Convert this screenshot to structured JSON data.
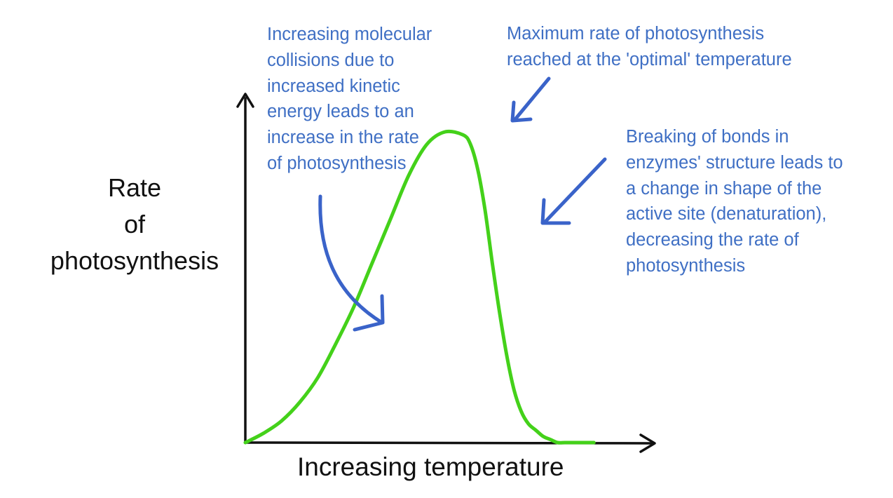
{
  "chart_data": {
    "type": "line",
    "title": "",
    "xlabel": "Increasing temperature",
    "ylabel": [
      "Rate",
      "of",
      "photosynthesis"
    ],
    "xlim": [
      0,
      100
    ],
    "ylim": [
      0,
      100
    ],
    "grid": false,
    "legend": "none",
    "series": [
      {
        "name": "Rate of photosynthesis",
        "color": "#44d11a",
        "x": [
          0,
          5,
          10,
          15,
          20,
          25,
          30,
          35,
          40,
          45,
          50,
          55,
          60,
          62,
          64,
          66,
          68,
          70,
          72,
          74,
          76,
          78,
          80,
          82,
          84,
          86,
          88,
          90,
          93,
          96
        ],
        "y": [
          0,
          3,
          7,
          13,
          21,
          32,
          44,
          58,
          72,
          86,
          96,
          100,
          99,
          96,
          88,
          75,
          58,
          42,
          28,
          17,
          10,
          6,
          4,
          2,
          1,
          0,
          0,
          0,
          0,
          0
        ]
      }
    ],
    "annotations": [
      {
        "id": "increasing",
        "lines": [
          "Increasing molecular",
          "collisions due to",
          "increased kinetic",
          "energy leads to an",
          "increase in the rate",
          "of photosynthesis"
        ]
      },
      {
        "id": "maximum",
        "lines": [
          "Maximum rate of photosynthesis",
          "reached at the 'optimal' temperature"
        ]
      },
      {
        "id": "denaturation",
        "lines": [
          "Breaking of bonds in",
          "enzymes' structure leads to",
          "a change in shape of the",
          "active site (denaturation),",
          "decreasing the rate of",
          "photosynthesis"
        ]
      }
    ]
  },
  "colors": {
    "curve": "#44d11a",
    "annotation_text": "#3f6fc4",
    "arrow": "#3a63c9",
    "axis": "#111111",
    "background": "#ffffff"
  }
}
